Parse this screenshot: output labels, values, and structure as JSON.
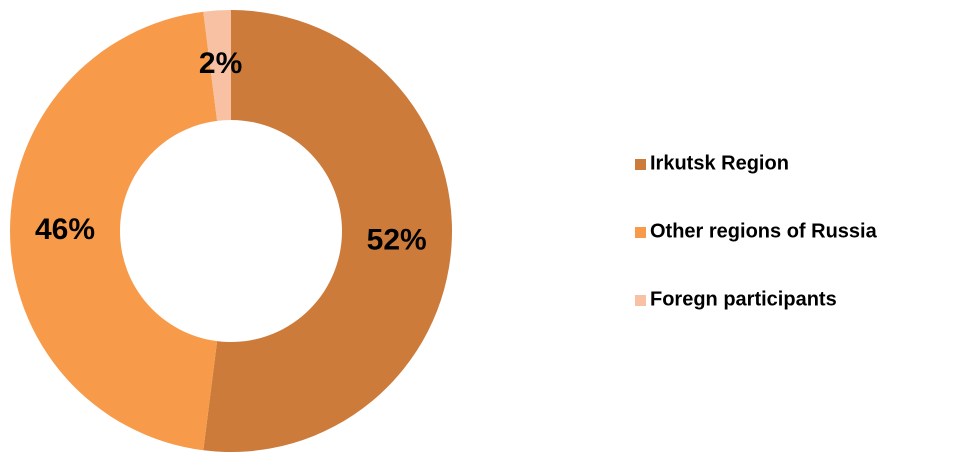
{
  "chart_data": {
    "type": "donut",
    "categories": [
      "Irkutsk Region",
      "Other regions of Russia",
      "Foregn participants"
    ],
    "values": [
      52,
      46,
      2
    ],
    "value_labels": [
      "52%",
      "46%",
      "2%"
    ],
    "colors": [
      "#cd7b3a",
      "#f79b4b",
      "#f9c1a3"
    ],
    "legend": "right"
  }
}
